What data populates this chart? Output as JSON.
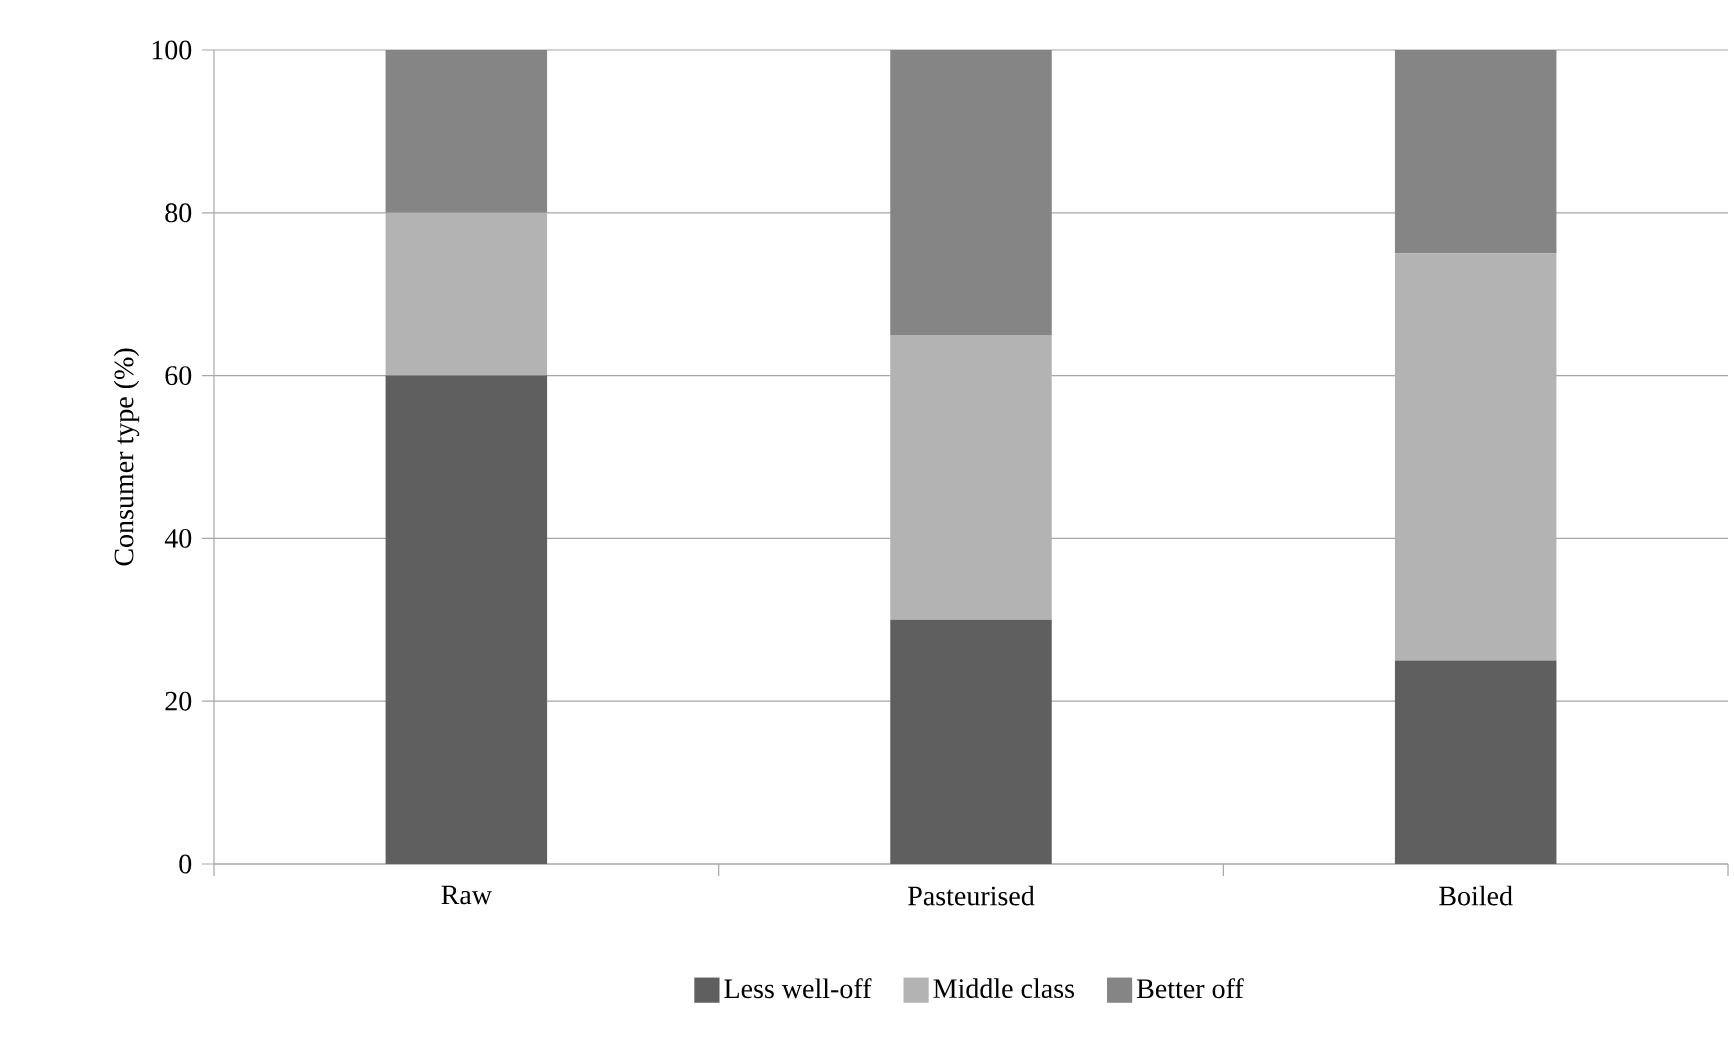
{
  "chart_data": {
    "type": "bar",
    "stacked": true,
    "ylabel": "Consumer type (%)",
    "categories": [
      "Raw",
      "Pasteurised",
      "Boiled"
    ],
    "series": [
      {
        "name": "Less well-off",
        "color": "#5f5f5f",
        "values": [
          60,
          30,
          25
        ]
      },
      {
        "name": "Middle class",
        "color": "#b3b3b3",
        "values": [
          20,
          35,
          50
        ]
      },
      {
        "name": "Better off",
        "color": "#858585",
        "values": [
          20,
          35,
          25
        ]
      }
    ],
    "ylim": [
      0,
      100
    ],
    "yticks": [
      0,
      20,
      40,
      60,
      80,
      100
    ],
    "grid": "y",
    "legend": "bottom"
  }
}
